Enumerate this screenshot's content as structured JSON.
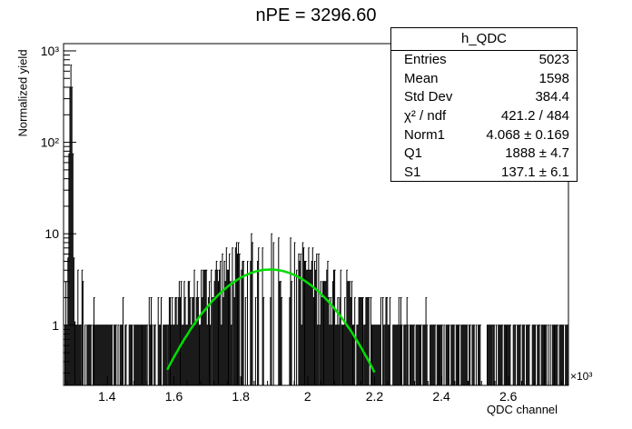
{
  "chart_data": {
    "type": "histogram",
    "title": "nPE = 3296.60",
    "xlabel": "QDC channel",
    "ylabel": "Normalized yield",
    "x_exponent_label": "×10³",
    "xlim": [
      1.27,
      2.78
    ],
    "ylim": [
      0.22,
      1200
    ],
    "y_scale": "log",
    "x_ticks": [
      "1.4",
      "1.6",
      "1.8",
      "2",
      "2.2",
      "2.4",
      "2.6"
    ],
    "x_tick_values": [
      1.4,
      1.6,
      1.8,
      2.0,
      2.2,
      2.4,
      2.6
    ],
    "y_ticks": [
      "1",
      "10",
      "10²",
      "10³"
    ],
    "y_tick_values": [
      1,
      10,
      100,
      1000
    ],
    "histogram_color": "#000000",
    "fit_color": "#00dd00",
    "pedestal_peak": {
      "x": 1.292,
      "y": 700
    },
    "fit": {
      "function": "gaussian",
      "norm": 4.068,
      "mean": 1.888,
      "sigma": 0.1371,
      "x_range": [
        1.58,
        2.2
      ]
    },
    "stats": {
      "name": "h_QDC",
      "rows": [
        {
          "label": "Entries",
          "value": "5023"
        },
        {
          "label": "Mean",
          "value": "1598"
        },
        {
          "label": "Std Dev",
          "value": "384.4"
        },
        {
          "label": "χ² / ndf",
          "value": "421.2 / 484"
        },
        {
          "label": "Norm1",
          "value": "4.068 ± 0.169"
        },
        {
          "label": "Q1",
          "value": "1888 ± 4.7"
        },
        {
          "label": "S1",
          "value": "137.1 ± 6.1"
        }
      ]
    }
  }
}
